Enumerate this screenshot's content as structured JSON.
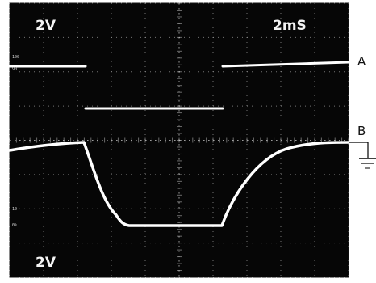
{
  "scope": {
    "volts_per_div_top": "2V",
    "time_per_div": "2mS",
    "volts_per_div_bottom": "2V"
  },
  "markers": {
    "trace_a": "A",
    "trace_b": "B"
  },
  "colors": {
    "screen": "#060606",
    "grid": "#cfcfcf",
    "trace": "#ffffff",
    "outer": "#ffffff",
    "marker_line": "#000000"
  },
  "icons": {
    "ground": "ground-symbol-icon"
  }
}
